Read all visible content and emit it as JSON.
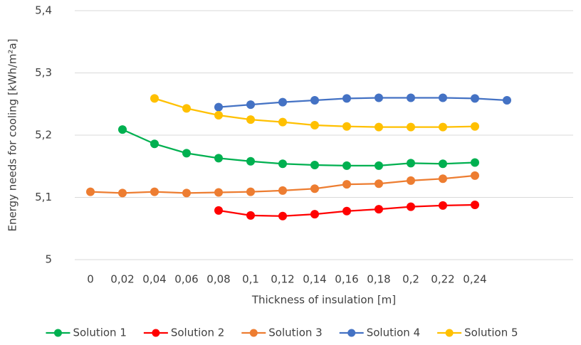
{
  "chart_data": {
    "type": "line",
    "x_label": "Thickness of insulation [m]",
    "y_label": "Energy needs for cooling [kWh/m²a]",
    "categories": [
      "0",
      "0,02",
      "0,04",
      "0,06",
      "0,08",
      "0,1",
      "0,12",
      "0,14",
      "0,16",
      "0,18",
      "0,2",
      "0,22",
      "0,24",
      null
    ],
    "ylim": [
      5,
      5.4
    ],
    "yticks": [
      5,
      {
        "value": 5.1,
        "label": "5,1"
      },
      {
        "value": 5.2,
        "label": "5,2"
      },
      {
        "value": 5.3,
        "label": "5,3"
      },
      {
        "value": 5.4,
        "label": "5,4"
      }
    ],
    "grid": true,
    "legend": "bottom",
    "series": [
      {
        "name": "Solution 1",
        "color": "#00b050",
        "values": [
          null,
          5.209,
          5.186,
          5.171,
          5.163,
          5.158,
          5.154,
          5.152,
          5.151,
          5.151,
          5.155,
          5.154,
          5.156,
          null
        ]
      },
      {
        "name": "Solution 2",
        "color": "#ff0000",
        "values": [
          null,
          null,
          null,
          null,
          5.079,
          5.071,
          5.07,
          5.073,
          5.078,
          5.081,
          5.085,
          5.087,
          5.088,
          null
        ]
      },
      {
        "name": "Solution 3",
        "color": "#ed7d31",
        "values": [
          5.109,
          5.107,
          5.109,
          5.107,
          5.108,
          5.109,
          5.111,
          5.114,
          5.121,
          5.122,
          5.127,
          5.13,
          5.135,
          null
        ]
      },
      {
        "name": "Solution 4",
        "color": "#4472c4",
        "values": [
          null,
          null,
          null,
          null,
          5.245,
          5.249,
          5.253,
          5.256,
          5.259,
          5.26,
          5.26,
          5.26,
          5.259,
          5.256
        ]
      },
      {
        "name": "Solution 5",
        "color": "#ffc000",
        "values": [
          null,
          null,
          5.259,
          5.243,
          5.232,
          5.225,
          5.221,
          5.216,
          5.214,
          5.213,
          5.213,
          5.213,
          5.214,
          null
        ]
      }
    ]
  }
}
